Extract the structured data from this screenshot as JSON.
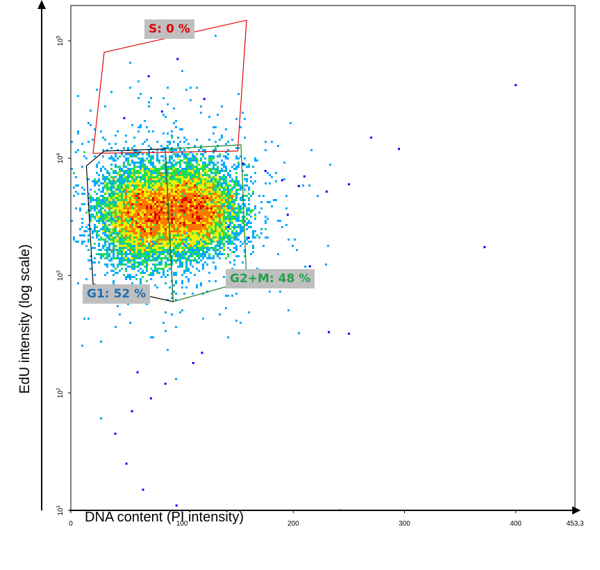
{
  "chart_data": {
    "type": "scatter",
    "title": "",
    "xlabel": "DNA content (PI intensity)",
    "ylabel": "EdU intensity (log scale)",
    "xlim": [
      0,
      453.3
    ],
    "ylim": [
      10,
      200000
    ],
    "y_scale": "log",
    "x_ticks": [
      {
        "value": 0,
        "label": "0"
      },
      {
        "value": 100,
        "label": "100"
      },
      {
        "value": 200,
        "label": "200"
      },
      {
        "value": 300,
        "label": "300"
      },
      {
        "value": 400,
        "label": "400"
      },
      {
        "value": 453.3,
        "label": "453,3"
      }
    ],
    "y_ticks": [
      {
        "value": 10,
        "base": "10",
        "exp": "1"
      },
      {
        "value": 100,
        "base": "10",
        "exp": "2"
      },
      {
        "value": 1000,
        "base": "10",
        "exp": "3"
      },
      {
        "value": 10000,
        "base": "10",
        "exp": "4"
      },
      {
        "value": 100000,
        "base": "10",
        "exp": "5"
      }
    ],
    "grid": false,
    "color_scale": [
      "#0000ff",
      "#00aaff",
      "#22dd55",
      "#eeee00",
      "#ff7700",
      "#dd0000"
    ],
    "clusters": [
      {
        "x_mean": 66,
        "x_sd": 20,
        "y_log_mean": 3.52,
        "y_log_sd": 0.2,
        "weight": 0.52
      },
      {
        "x_mean": 112,
        "x_sd": 19,
        "y_log_mean": 3.57,
        "y_log_sd": 0.18,
        "weight": 0.48
      }
    ],
    "gates": [
      {
        "name": "S",
        "label": "S: 0 %",
        "percent": 0,
        "color": "#e00000",
        "vertices": [
          [
            30,
            80000
          ],
          [
            158,
            150000
          ],
          [
            150,
            11500
          ],
          [
            20,
            11000
          ]
        ]
      },
      {
        "name": "G1",
        "label": "G1: 52 %",
        "percent": 52,
        "color": "#000000",
        "vertices": [
          [
            14,
            8600
          ],
          [
            30,
            11500
          ],
          [
            85,
            12000
          ],
          [
            92,
            600
          ],
          [
            20,
            850
          ]
        ]
      },
      {
        "name": "G2+M",
        "label": "G2+M: 48 %",
        "percent": 48,
        "color": "#1a7a1a",
        "vertices": [
          [
            85,
            12000
          ],
          [
            153,
            13000
          ],
          [
            158,
            900
          ],
          [
            92,
            600
          ]
        ]
      }
    ],
    "outliers": [
      [
        400,
        42000
      ],
      [
        372,
        1750
      ],
      [
        250,
        320
      ],
      [
        232,
        330
      ],
      [
        48,
        22000
      ],
      [
        82,
        25000
      ],
      [
        96,
        70000
      ],
      [
        70,
        50000
      ],
      [
        120,
        32000
      ],
      [
        155,
        9000
      ],
      [
        175,
        7800
      ],
      [
        190,
        6500
      ],
      [
        210,
        7000
      ],
      [
        230,
        5200
      ],
      [
        250,
        6000
      ],
      [
        270,
        15000
      ],
      [
        295,
        12000
      ],
      [
        205,
        5800
      ],
      [
        142,
        2600
      ],
      [
        160,
        2100
      ],
      [
        195,
        3300
      ],
      [
        215,
        1200
      ],
      [
        95,
        11
      ],
      [
        65,
        15
      ],
      [
        50,
        25
      ],
      [
        40,
        45
      ],
      [
        55,
        70
      ],
      [
        72,
        90
      ],
      [
        85,
        120
      ],
      [
        60,
        150
      ],
      [
        118,
        220
      ],
      [
        110,
        180
      ]
    ],
    "notes": {
      "x_axis_marker": "˜"
    }
  }
}
